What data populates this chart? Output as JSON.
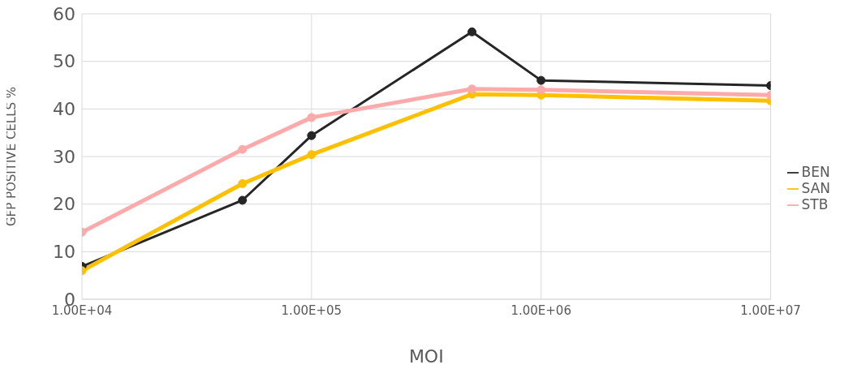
{
  "chart_data": {
    "type": "line",
    "xlabel": "MOI",
    "ylabel": "GFP POSITIVE CELLS %",
    "x": [
      10000,
      50000,
      100000,
      500000,
      1000000,
      10000000
    ],
    "series": [
      {
        "name": "BEN",
        "color": "#262626",
        "values": [
          6.9,
          20.8,
          34.4,
          56.2,
          46.0,
          44.9
        ]
      },
      {
        "name": "SAN",
        "color": "#ffc000",
        "values": [
          6.0,
          24.3,
          30.4,
          43.1,
          42.9,
          41.7
        ]
      },
      {
        "name": "STB",
        "color": "#ffaaaa",
        "values": [
          14.1,
          31.5,
          38.2,
          44.2,
          44.0,
          42.9
        ]
      }
    ],
    "log": "x",
    "xlim": [
      10000,
      10000000
    ],
    "xticks": [
      {
        "value": 10000,
        "label": "1.00E+04"
      },
      {
        "value": 100000,
        "label": "1.00E+05"
      },
      {
        "value": 1000000,
        "label": "1.00E+06"
      },
      {
        "value": 10000000,
        "label": "1.00E+07"
      }
    ],
    "ylim": [
      0,
      60
    ],
    "yticks": [
      0,
      10,
      20,
      30,
      40,
      50,
      60
    ],
    "grid": true,
    "legend": "right",
    "marker": "circle",
    "line_style": "solid"
  }
}
